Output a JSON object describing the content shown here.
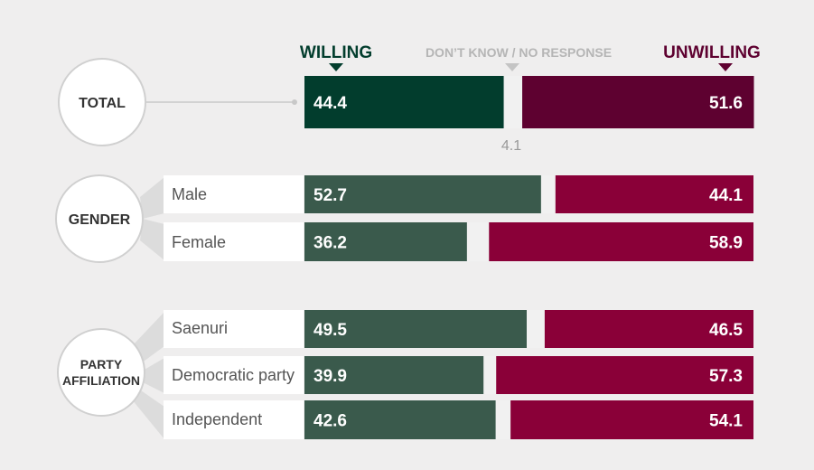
{
  "header": {
    "willing": "WILLING",
    "dont_know": "DON’T KNOW / NO RESPONSE",
    "unwilling": "UNWILLING"
  },
  "colors": {
    "willing_total": "#023d2d",
    "willing": "#3a5a4c",
    "unwilling_total": "#5e0130",
    "unwilling": "#8a0038",
    "dont_know": "#f1f1f1",
    "willing_header": "#023d2d",
    "unwilling_header": "#5e0130",
    "dont_know_header": "#b5b5b5"
  },
  "chart_data": {
    "type": "bar",
    "stacked": true,
    "orientation": "horizontal",
    "groups": [
      {
        "name": "TOTAL",
        "rows": [
          {
            "label": "",
            "willing": 44.4,
            "dont_know": 4.1,
            "unwilling": 51.6,
            "dont_know_label": "4.1"
          }
        ]
      },
      {
        "name": "GENDER",
        "rows": [
          {
            "label": "Male",
            "willing": 52.7,
            "dont_know": 3.2,
            "unwilling": 44.1
          },
          {
            "label": "Female",
            "willing": 36.2,
            "dont_know": 4.9,
            "unwilling": 58.9
          }
        ]
      },
      {
        "name": "PARTY AFFILIATION",
        "name_lines": [
          "PARTY",
          "AFFILIATION"
        ],
        "rows": [
          {
            "label": "Saenuri",
            "willing": 49.5,
            "dont_know": 4.0,
            "unwilling": 46.5
          },
          {
            "label": "Democratic party",
            "willing": 39.9,
            "dont_know": 2.8,
            "unwilling": 57.3
          },
          {
            "label": "Independent",
            "willing": 42.6,
            "dont_know": 3.3,
            "unwilling": 54.1
          }
        ]
      }
    ]
  }
}
